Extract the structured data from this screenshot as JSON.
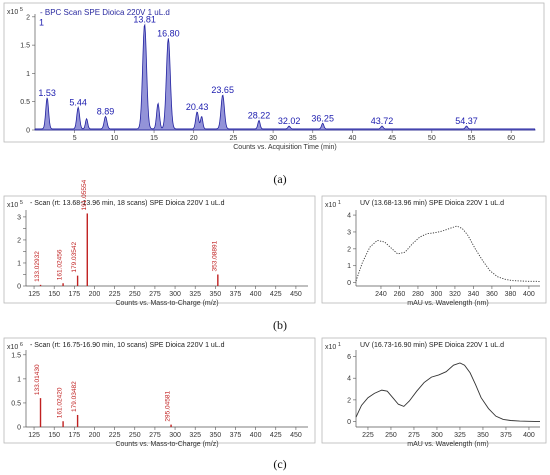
{
  "chart_data": [
    {
      "type": "area",
      "title": "- BPC Scan SPE Dioica 220V 1 uL.d",
      "scale_label": "x10",
      "scale_exp": "5",
      "xlabel": "Counts vs. Acquisition Time (min)",
      "xlim": [
        0,
        63
      ],
      "ylim": [
        0,
        2.05
      ],
      "xticks": [
        5,
        10,
        15,
        20,
        25,
        30,
        35,
        40,
        45,
        50,
        55,
        60
      ],
      "yticks": [
        0,
        0.5,
        1,
        1.5,
        2
      ],
      "ytick_labels": [
        "0",
        "0.5",
        "1",
        "1.5",
        "2"
      ],
      "peaks": [
        {
          "x": 1.53,
          "y": 0.55,
          "w": 0.25,
          "label": "1.53"
        },
        {
          "x": 5.44,
          "y": 0.38,
          "w": 0.25,
          "label": "5.44"
        },
        {
          "x": 6.5,
          "y": 0.18,
          "w": 0.2,
          "label": ""
        },
        {
          "x": 8.89,
          "y": 0.22,
          "w": 0.25,
          "label": "8.89"
        },
        {
          "x": 13.81,
          "y": 1.85,
          "w": 0.35,
          "label": "13.81"
        },
        {
          "x": 15.5,
          "y": 0.45,
          "w": 0.25,
          "label": ""
        },
        {
          "x": 16.8,
          "y": 1.6,
          "w": 0.35,
          "label": "16.80"
        },
        {
          "x": 20.43,
          "y": 0.3,
          "w": 0.25,
          "label": "20.43"
        },
        {
          "x": 21.0,
          "y": 0.22,
          "w": 0.2,
          "label": ""
        },
        {
          "x": 23.65,
          "y": 0.6,
          "w": 0.3,
          "label": "23.65"
        },
        {
          "x": 28.22,
          "y": 0.15,
          "w": 0.2,
          "label": "28.22"
        },
        {
          "x": 32.02,
          "y": 0.05,
          "w": 0.2,
          "label": "32.02"
        },
        {
          "x": 36.25,
          "y": 0.1,
          "w": 0.2,
          "label": "36.25"
        },
        {
          "x": 43.72,
          "y": 0.05,
          "w": 0.2,
          "label": "43.72"
        },
        {
          "x": 54.37,
          "y": 0.05,
          "w": 0.2,
          "label": "54.37"
        }
      ],
      "label_1": "1",
      "caption": "(a)"
    },
    {
      "type": "bar",
      "title": "- Scan (rt: 13.68-13.96 min, 18 scans) SPE Dioica 220V 1 uL.d",
      "scale_label": "x10",
      "scale_exp": "5",
      "xlabel": "Counts vs. Mass-to-Charge (m/z)",
      "xlim": [
        115,
        465
      ],
      "ylim": [
        0,
        3.3
      ],
      "xticks": [
        125,
        150,
        175,
        200,
        225,
        250,
        275,
        300,
        325,
        350,
        375,
        400,
        425,
        450
      ],
      "yticks": [
        0,
        0.5,
        1,
        1.5,
        2,
        2.5,
        3
      ],
      "ytick_labels": [
        "0",
        "",
        "1",
        "",
        "2",
        "",
        "3"
      ],
      "peaks": [
        {
          "x": 133.02932,
          "y": 0.05,
          "label": "133.02932"
        },
        {
          "x": 161.02456,
          "y": 0.12,
          "label": "161.02456"
        },
        {
          "x": 179.03542,
          "y": 0.45,
          "label": "179.03542"
        },
        {
          "x": 191.05554,
          "y": 3.15,
          "label": "191.05554"
        },
        {
          "x": 353.08891,
          "y": 0.5,
          "label": "353.08891"
        }
      ],
      "caption": "(b)"
    },
    {
      "type": "line",
      "title": "UV (13.68-13.96 min) SPE Dioica 220V 1 uL.d",
      "scale_label": "x10",
      "scale_exp": "1",
      "xlabel": "mAU vs. Wavelength (nm)",
      "xlim": [
        213,
        412
      ],
      "ylim": [
        -0.2,
        4.3
      ],
      "xticks": [
        240,
        260,
        280,
        300,
        320,
        340,
        360,
        380,
        400
      ],
      "yticks": [
        0,
        1,
        2,
        3,
        4
      ],
      "x": [
        213,
        220,
        228,
        236,
        244,
        250,
        258,
        266,
        274,
        282,
        290,
        298,
        306,
        314,
        322,
        328,
        334,
        342,
        350,
        358,
        366,
        374,
        382,
        390,
        398,
        405,
        412
      ],
      "y": [
        0.1,
        1.2,
        2.1,
        2.5,
        2.4,
        2.1,
        1.7,
        1.8,
        2.3,
        2.7,
        2.9,
        2.95,
        3.05,
        3.2,
        3.35,
        3.2,
        2.8,
        2.0,
        1.3,
        0.7,
        0.35,
        0.2,
        0.12,
        0.1,
        0.08,
        0.08,
        0.07
      ],
      "style": "dotted"
    },
    {
      "type": "bar",
      "title": "- Scan (rt: 16.75-16.90 min, 10 scans) SPE Dioica 220V 1 uL.d",
      "scale_label": "x10",
      "scale_exp": "6",
      "xlabel": "Counts vs. Mass-to-Charge (m/z)",
      "xlim": [
        115,
        465
      ],
      "ylim": [
        0,
        1.6
      ],
      "xticks": [
        125,
        150,
        175,
        200,
        225,
        250,
        275,
        300,
        325,
        350,
        375,
        400,
        425,
        450
      ],
      "yticks": [
        0,
        0.5,
        1,
        1.5
      ],
      "ytick_labels": [
        "0",
        "0.5",
        "1",
        "1.5"
      ],
      "peaks": [
        {
          "x": 133.0143,
          "y": 0.6,
          "label": "133.01430"
        },
        {
          "x": 161.0242,
          "y": 0.12,
          "label": "161.02420"
        },
        {
          "x": 179.03482,
          "y": 0.25,
          "label": "179.03482"
        },
        {
          "x": 295.04581,
          "y": 0.05,
          "label": "295.04581"
        }
      ],
      "caption": "(c)"
    },
    {
      "type": "line",
      "title": "UV (16.73-16.90 min) SPE Dioica 220V 1 uL.d",
      "scale_label": "x10",
      "scale_exp": "1",
      "xlabel": "mAU vs. Wavelength (nm)",
      "xlim": [
        212,
        412
      ],
      "ylim": [
        -0.5,
        6.6
      ],
      "xticks": [
        225,
        250,
        275,
        300,
        325,
        350,
        375,
        400
      ],
      "yticks": [
        0,
        2,
        4,
        6
      ],
      "x": [
        212,
        218,
        225,
        232,
        240,
        246,
        252,
        258,
        264,
        270,
        278,
        286,
        294,
        302,
        310,
        318,
        325,
        330,
        336,
        342,
        348,
        356,
        364,
        372,
        380,
        390,
        400,
        412
      ],
      "y": [
        0.4,
        1.5,
        2.2,
        2.6,
        2.9,
        2.8,
        2.2,
        1.6,
        1.4,
        1.9,
        2.8,
        3.6,
        4.1,
        4.3,
        4.6,
        5.2,
        5.4,
        5.2,
        4.5,
        3.4,
        2.2,
        1.2,
        0.5,
        0.2,
        0.1,
        0.05,
        0.02,
        0.0
      ],
      "style": "solid"
    }
  ]
}
